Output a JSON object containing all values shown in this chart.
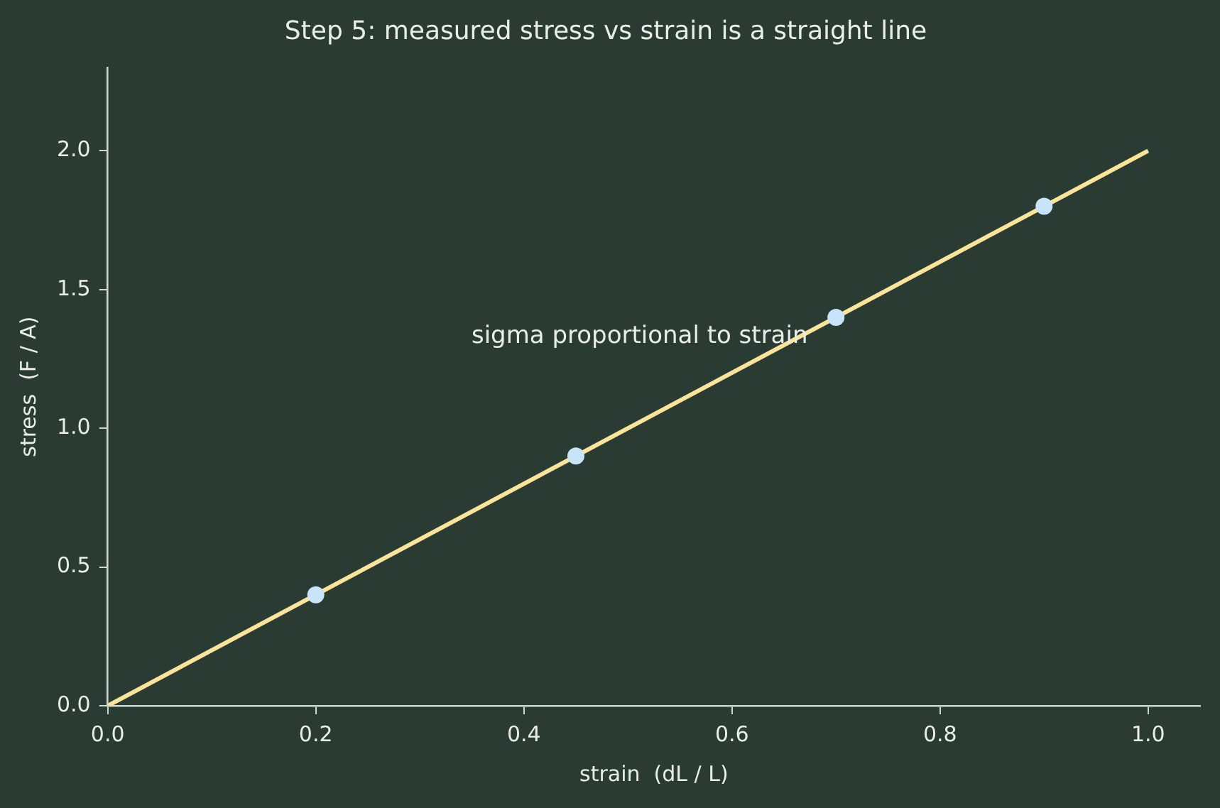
{
  "chart_data": {
    "type": "scatter",
    "title": "Step 5: measured stress vs strain is a straight line",
    "xlabel": "strain  (dL / L)",
    "ylabel": "stress  (F / A)",
    "annotations": [
      "sigma proportional to strain"
    ],
    "series": [
      {
        "type": "line",
        "color": "#fbe39a",
        "x": [
          0,
          1
        ],
        "values": [
          0,
          2
        ],
        "marker": "none",
        "line_style": "solid"
      },
      {
        "type": "scatter",
        "color": "#c8e4fa",
        "x": [
          0.2,
          0.45,
          0.7,
          0.9
        ],
        "values": [
          0.4,
          0.9,
          1.4,
          1.8
        ],
        "marker": "circle"
      }
    ],
    "xlim": [
      0,
      1.05
    ],
    "ylim": [
      0,
      2.3
    ],
    "xticks": [
      {
        "value": 0,
        "label": "0.0"
      },
      0.2,
      0.4,
      0.6,
      0.8,
      {
        "value": 1,
        "label": "1.0"
      }
    ],
    "yticks": [
      {
        "value": 0,
        "label": "0.0"
      },
      0.5,
      {
        "value": 1,
        "label": "1.0"
      },
      1.5,
      {
        "value": 2,
        "label": "2.0"
      }
    ],
    "grid": false,
    "legend": false
  }
}
